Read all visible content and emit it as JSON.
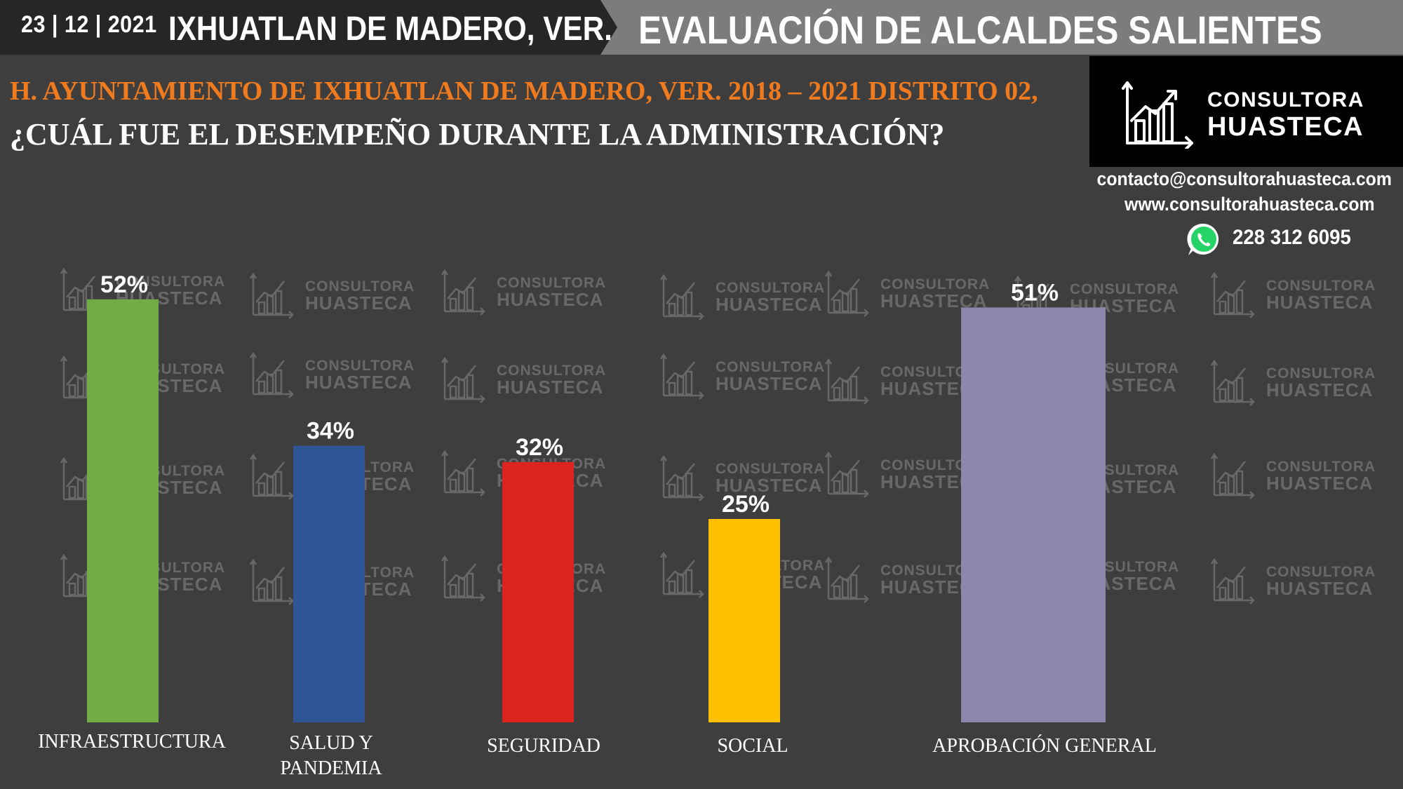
{
  "header": {
    "date": "23 | 12 | 2021",
    "municipio": "IXHUATLAN DE MADERO, VER.",
    "title": "EVALUACIÓN DE ALCALDES SALIENTES"
  },
  "subtitle": "H. AYUNTAMIENTO DE IXHUATLAN DE MADERO, VER. 2018 – 2021 DISTRITO 02,",
  "question": "¿CUÁL FUE EL DESEMPEÑO DURANTE LA ADMINISTRACIÓN?",
  "brand": {
    "line1": "CONSULTORA",
    "line2": "HUASTECA",
    "email": "contacto@consultorahuasteca.com",
    "website": "www.consultorahuasteca.com",
    "phone": "228 312 6095",
    "phone_icon": "whatsapp-icon",
    "logo_icon": "rising-bar-chart-icon"
  },
  "watermark": {
    "line1": "CONSULTORA",
    "line2": "HUASTECA"
  },
  "chart_data": {
    "type": "bar",
    "categories": [
      "INFRAESTRUCTURA",
      "SALUD Y PANDEMIA",
      "SEGURIDAD",
      "SOCIAL",
      "APROBACIÓN GENERAL"
    ],
    "category_lines": [
      [
        "INFRAESTRUCTURA"
      ],
      [
        "SALUD Y",
        "PANDEMIA"
      ],
      [
        "SEGURIDAD"
      ],
      [
        "SOCIAL"
      ],
      [
        "APROBACIÓN GENERAL"
      ]
    ],
    "values": [
      52,
      34,
      32,
      25,
      51
    ],
    "value_labels": [
      "52%",
      "34%",
      "32%",
      "25%",
      "51%"
    ],
    "colors": [
      "#70ad47",
      "#2f5597",
      "#dc231e",
      "#ffc000",
      "#8f86ad"
    ],
    "ylim": [
      0,
      60
    ],
    "unit": "%",
    "grid": false,
    "legend": "none"
  }
}
